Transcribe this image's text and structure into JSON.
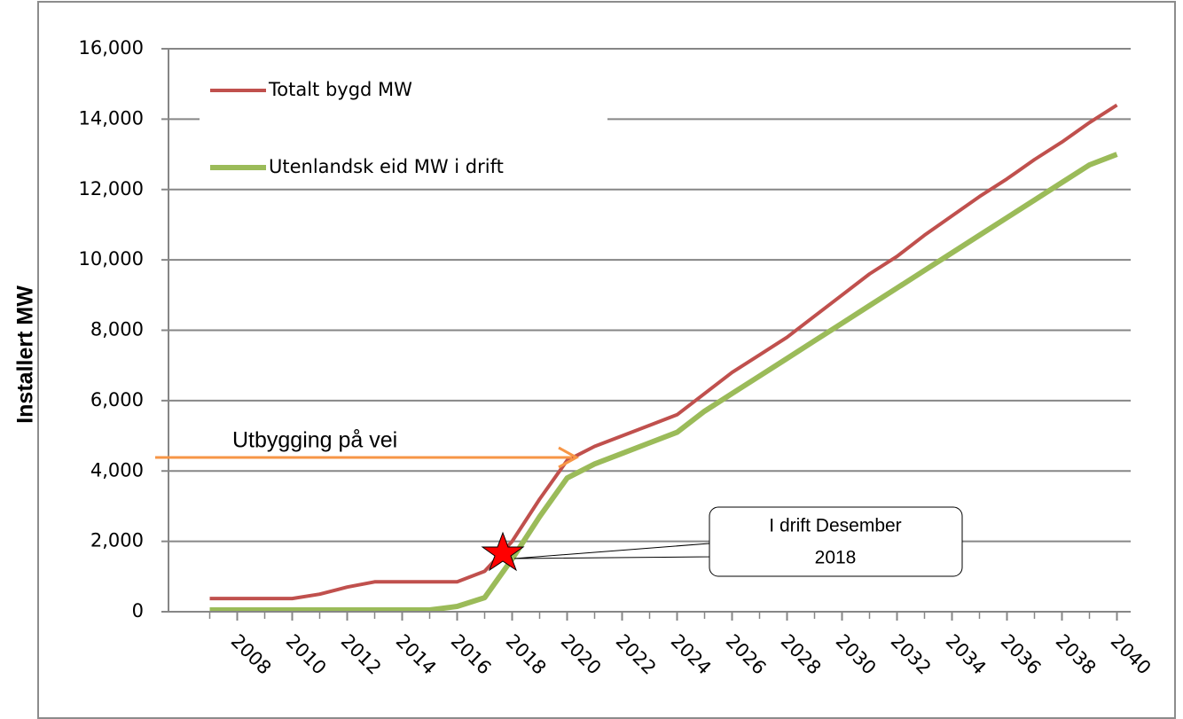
{
  "chart_data": {
    "type": "line",
    "y_label": "Installert MW",
    "x": [
      2007,
      2008,
      2009,
      2010,
      2011,
      2012,
      2013,
      2014,
      2015,
      2016,
      2017,
      2018,
      2019,
      2020,
      2021,
      2022,
      2023,
      2024,
      2025,
      2026,
      2027,
      2028,
      2029,
      2030,
      2031,
      2032,
      2033,
      2034,
      2035,
      2036,
      2037,
      2038,
      2039,
      2040
    ],
    "series": [
      {
        "name": "Totalt bygd MW",
        "color": "#c0504d",
        "values": [
          375,
          375,
          375,
          375,
          500,
          700,
          850,
          850,
          850,
          850,
          1150,
          2000,
          3200,
          4300,
          4700,
          5000,
          5300,
          5600,
          6200,
          6800,
          7300,
          7800,
          8400,
          9000,
          9600,
          10100,
          10700,
          11250,
          11800,
          12300,
          12850,
          13350,
          13900,
          14400
        ]
      },
      {
        "name": "Utenlandsk eid MW i drift",
        "color": "#9bbb59",
        "values": [
          50,
          50,
          50,
          50,
          50,
          50,
          50,
          50,
          50,
          150,
          400,
          1500,
          2700,
          3800,
          4200,
          4500,
          4800,
          5100,
          5700,
          6200,
          6700,
          7200,
          7700,
          8200,
          8700,
          9200,
          9700,
          10200,
          10700,
          11200,
          11700,
          12200,
          12700,
          13000
        ]
      }
    ],
    "xlim": [
      2005.5,
      2040.5
    ],
    "xticks": [
      2008,
      2010,
      2012,
      2014,
      2016,
      2018,
      2020,
      2022,
      2024,
      2026,
      2028,
      2030,
      2032,
      2034,
      2036,
      2038,
      2040
    ],
    "ylim": [
      0,
      16000
    ],
    "yticks": [
      0,
      {
        "value": 2000,
        "label": "2,000"
      },
      {
        "value": 4000,
        "label": "4,000"
      },
      {
        "value": 6000,
        "label": "6,000"
      },
      {
        "value": 8000,
        "label": "8,000"
      },
      {
        "value": 10000,
        "label": "10,000"
      },
      {
        "value": 12000,
        "label": "12,000"
      },
      {
        "value": 14000,
        "label": "14,000"
      },
      {
        "value": 16000,
        "label": "16,000"
      }
    ],
    "grid": true,
    "legend": "upper-left",
    "annotations": {
      "arrow_text": "Utbygging på vei",
      "callout_lines": [
        "I drift Desember",
        "2018"
      ]
    }
  }
}
